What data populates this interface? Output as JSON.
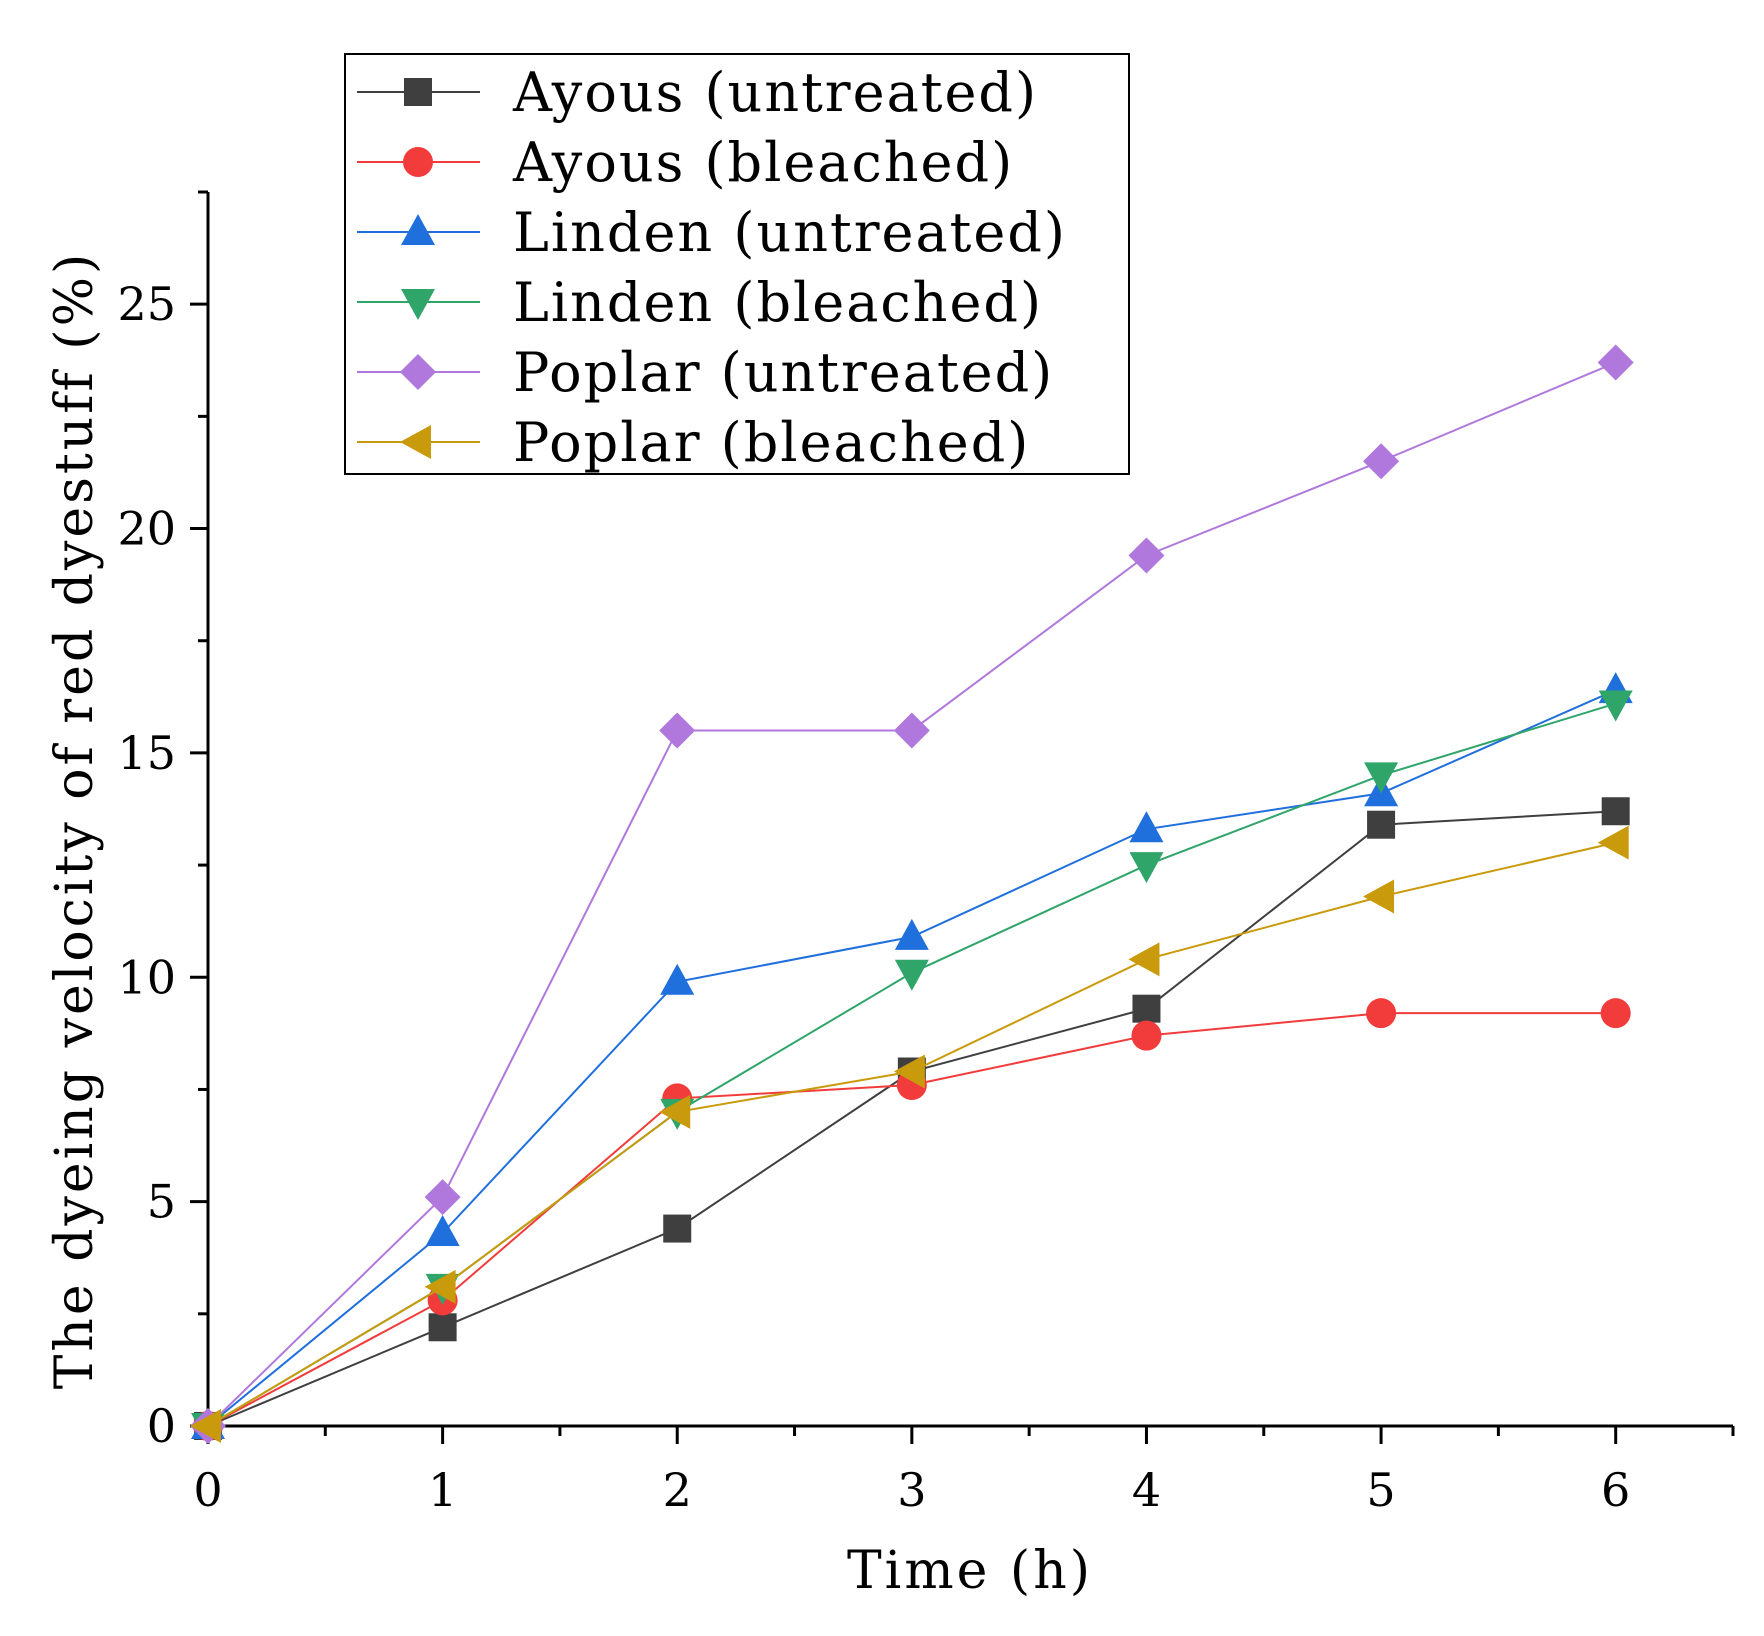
{
  "chart_data": {
    "type": "line",
    "title": "",
    "xlabel": "Time (h)",
    "ylabel": "The dyeing velocity of red dyestuff (%)",
    "xlim": [
      0,
      6.5
    ],
    "ylim": [
      0,
      27.5
    ],
    "x_ticks": [
      0,
      1,
      2,
      3,
      4,
      5,
      6
    ],
    "y_ticks": [
      0,
      5,
      10,
      15,
      20,
      25
    ],
    "grid": false,
    "legend_position": "top-left",
    "x": [
      0,
      1,
      2,
      3,
      4,
      5,
      6
    ],
    "series": [
      {
        "name": "Ayous (untreated)",
        "color": "#3f3f3f",
        "marker": "square",
        "values": [
          0,
          2.2,
          4.4,
          7.9,
          9.3,
          13.4,
          13.7
        ]
      },
      {
        "name": "Ayous (bleached)",
        "color": "#f23b3b",
        "marker": "circle",
        "values": [
          0,
          2.8,
          7.3,
          7.6,
          8.7,
          9.2,
          9.2
        ]
      },
      {
        "name": "Linden (untreated)",
        "color": "#1f6fdc",
        "marker": "triangle-up",
        "values": [
          0,
          4.3,
          9.9,
          10.9,
          13.3,
          14.1,
          16.4
        ]
      },
      {
        "name": "Linden (bleached)",
        "color": "#2fa56a",
        "marker": "triangle-down",
        "values": [
          0,
          3.1,
          7.0,
          10.1,
          12.5,
          14.5,
          16.1
        ]
      },
      {
        "name": "Poplar (untreated)",
        "color": "#b078dc",
        "marker": "diamond",
        "values": [
          0,
          5.1,
          15.5,
          15.5,
          19.4,
          21.5,
          23.7
        ]
      },
      {
        "name": "Poplar (bleached)",
        "color": "#c99a0b",
        "marker": "triangle-left",
        "values": [
          0,
          3.1,
          7.0,
          7.9,
          10.4,
          11.8,
          13.0
        ]
      }
    ]
  }
}
